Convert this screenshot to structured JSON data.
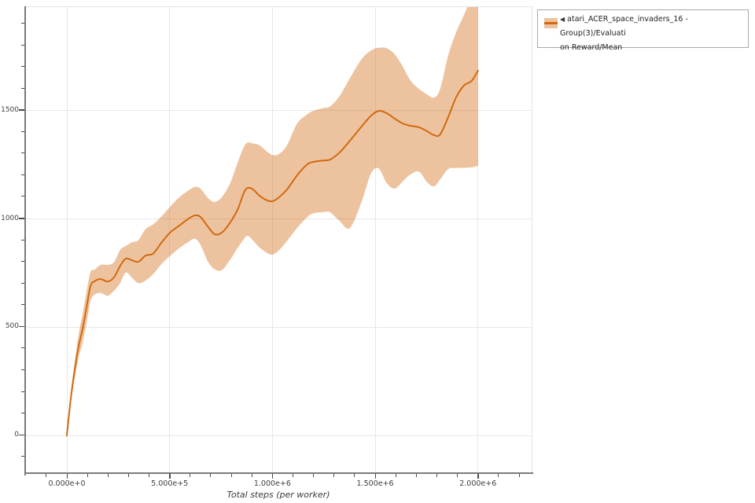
{
  "page": {
    "background": "#ffffff"
  },
  "legend": {
    "marker": "◀",
    "line1": "atari_ACER_space_invaders_16 - Group(3)/Evaluati",
    "line2": "on Reward/Mean",
    "swatch_line_color": "#d2690e",
    "swatch_band_color": "#edc39f"
  },
  "chart_data": {
    "type": "line",
    "title": "",
    "xlabel": "Total steps (per worker)",
    "ylabel": "",
    "grid": "major",
    "legend_position": "top-right",
    "xlim": [
      -199000,
      2261000
    ],
    "ylim": [
      -181,
      1978
    ],
    "x_tick_values": [
      0,
      500000,
      1000000,
      1500000,
      2000000
    ],
    "x_tick_labels": [
      "0.000e+0",
      "5.000e+5",
      "1.000e+6",
      "1.500e+6",
      "2.000e+6"
    ],
    "x_minor_tick_step": 100000,
    "y_tick_values": [
      0,
      500,
      1000,
      1500
    ],
    "y_tick_labels": [
      "0",
      "500",
      "1000",
      "1500"
    ],
    "y_minor_tick_step": 100,
    "series": [
      {
        "name": "atari_ACER_space_invaders_16 - Group(3)/Evaluation Reward/Mean",
        "line_color": "#d2690e",
        "band_alpha": 0.4,
        "x": [
          0,
          19000,
          38000,
          57000,
          76000,
          96000,
          115000,
          134000,
          164000,
          199000,
          229000,
          260000,
          287000,
          317000,
          348000,
          382000,
          420000,
          459000,
          501000,
          547000,
          593000,
          623000,
          650000,
          688000,
          719000,
          753000,
          792000,
          830000,
          860000,
          879000,
          906000,
          937000,
          975000,
          1002000,
          1032000,
          1071000,
          1120000,
          1166000,
          1197000,
          1250000,
          1281000,
          1327000,
          1377000,
          1434000,
          1480000,
          1518000,
          1556000,
          1595000,
          1633000,
          1671000,
          1713000,
          1752000,
          1786000,
          1816000,
          1855000,
          1893000,
          1931000,
          1969000,
          2000000
        ],
        "mean": [
          0,
          170,
          300,
          410,
          490,
          592,
          690,
          712,
          722,
          711,
          730,
          784,
          817,
          809,
          802,
          830,
          840,
          889,
          936,
          969,
          1002,
          1016,
          1009,
          962,
          929,
          936,
          980,
          1042,
          1118,
          1143,
          1136,
          1107,
          1085,
          1082,
          1100,
          1136,
          1201,
          1249,
          1263,
          1270,
          1274,
          1307,
          1361,
          1427,
          1477,
          1499,
          1488,
          1463,
          1441,
          1430,
          1423,
          1405,
          1387,
          1390,
          1470,
          1560,
          1615,
          1637,
          1685
        ],
        "lo": [
          0,
          150,
          265,
          360,
          425,
          520,
          620,
          650,
          658,
          645,
          668,
          705,
          752,
          728,
          703,
          715,
          745,
          790,
          828,
          865,
          895,
          908,
          880,
          800,
          768,
          763,
          808,
          865,
          905,
          922,
          900,
          868,
          842,
          836,
          855,
          898,
          958,
          1005,
          1025,
          1032,
          1030,
          990,
          958,
          1080,
          1210,
          1232,
          1165,
          1140,
          1172,
          1205,
          1218,
          1170,
          1150,
          1182,
          1230,
          1235,
          1236,
          1238,
          1245
        ],
        "hi": [
          0,
          195,
          340,
          465,
          560,
          665,
          755,
          765,
          788,
          788,
          800,
          858,
          875,
          892,
          902,
          952,
          975,
          1010,
          1055,
          1100,
          1132,
          1148,
          1140,
          1095,
          1078,
          1100,
          1160,
          1258,
          1330,
          1352,
          1348,
          1340,
          1310,
          1295,
          1300,
          1340,
          1440,
          1480,
          1498,
          1512,
          1520,
          1568,
          1650,
          1738,
          1778,
          1790,
          1788,
          1760,
          1705,
          1640,
          1600,
          1575,
          1560,
          1600,
          1755,
          1860,
          1940,
          2020,
          2060
        ]
      }
    ]
  }
}
